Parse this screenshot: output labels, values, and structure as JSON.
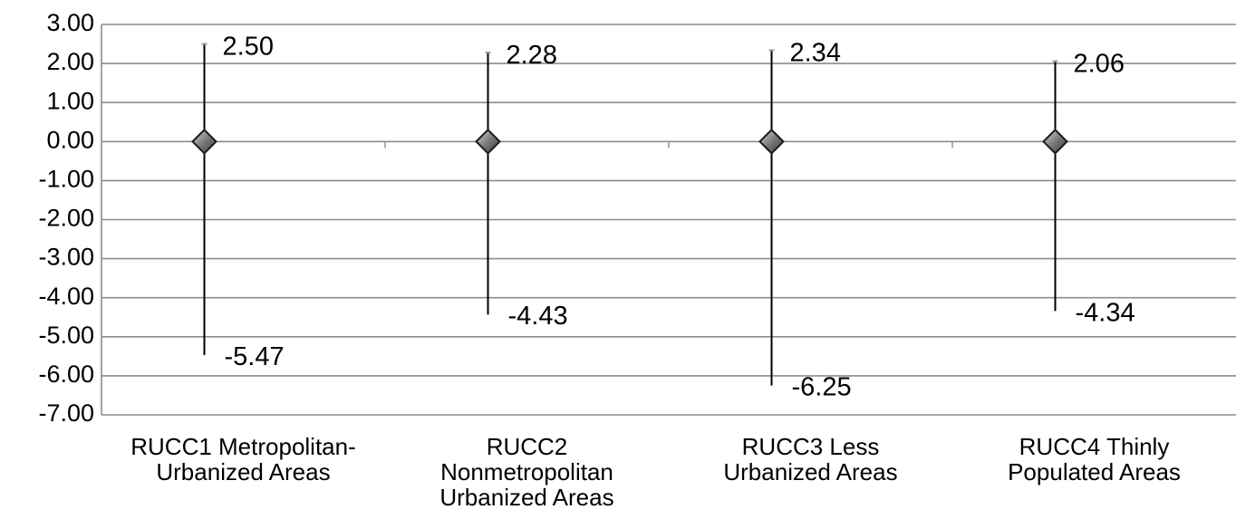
{
  "chart_data": {
    "type": "error-bar",
    "title": "",
    "xlabel": "",
    "ylabel": "",
    "ylim": [
      -7,
      3
    ],
    "yticks": [
      "3.00",
      "2.00",
      "1.00",
      "0.00",
      "-1.00",
      "-2.00",
      "-3.00",
      "-4.00",
      "-5.00",
      "-6.00",
      "-7.00"
    ],
    "grid": true,
    "categories": [
      [
        "RUCC1 Metropolitan-",
        "Urbanized Areas"
      ],
      [
        "RUCC2",
        "Nonmetropolitan",
        "Urbanized Areas"
      ],
      [
        "RUCC3 Less",
        "Urbanized Areas"
      ],
      [
        "RUCC4 Thinly",
        "Populated Areas"
      ]
    ],
    "points": [
      {
        "center": 0,
        "upper": 2.5,
        "lower": -5.47,
        "upper_label": "2.50",
        "lower_label": "-5.47"
      },
      {
        "center": 0,
        "upper": 2.28,
        "lower": -4.43,
        "upper_label": "2.28",
        "lower_label": "-4.43"
      },
      {
        "center": 0,
        "upper": 2.34,
        "lower": -6.25,
        "upper_label": "2.34",
        "lower_label": "-6.25"
      },
      {
        "center": 0,
        "upper": 2.06,
        "lower": -4.34,
        "upper_label": "2.06",
        "lower_label": "-4.34"
      }
    ],
    "colors": {
      "grid": "#8c8c8c",
      "axis": "#8c8c8c",
      "whisker": "#000000",
      "marker": "#6e6e6e",
      "marker_edge": "#1a1a1a"
    }
  }
}
